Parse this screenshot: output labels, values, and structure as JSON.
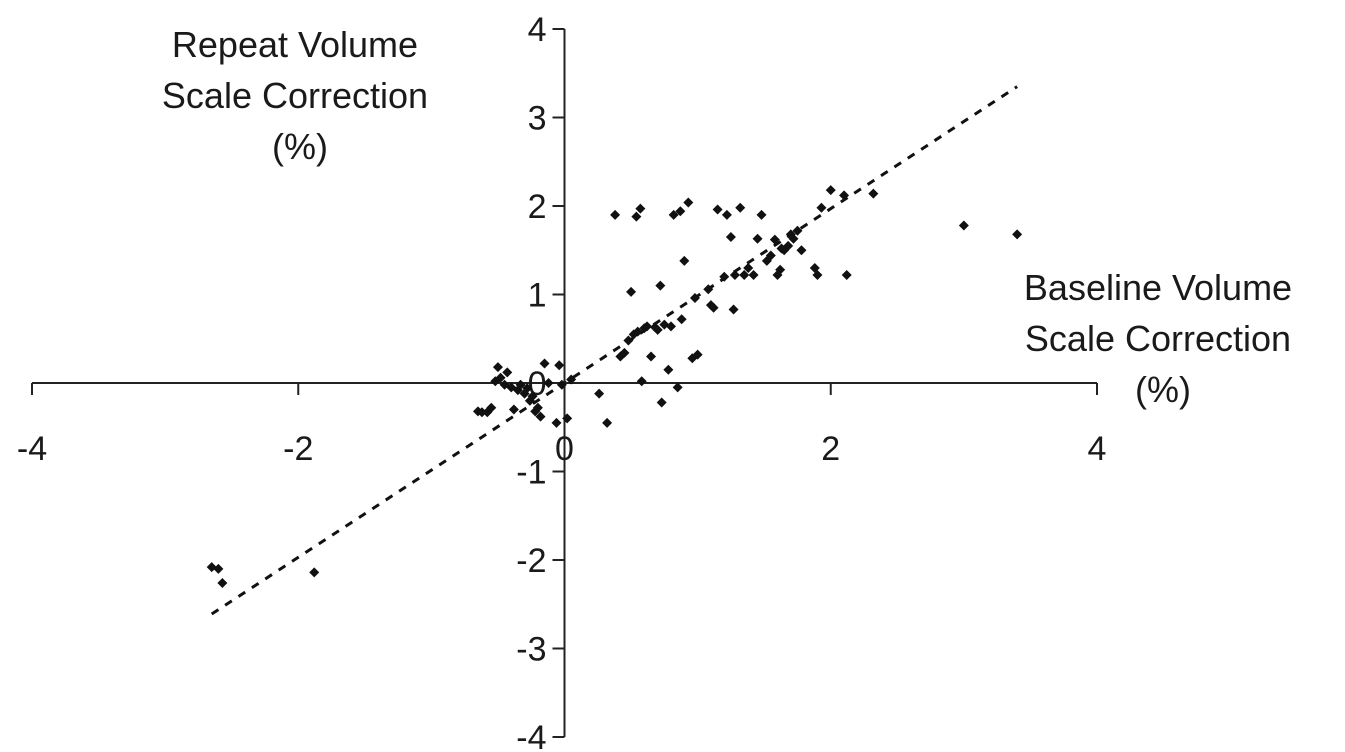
{
  "chart_data": {
    "type": "scatter",
    "title": "",
    "xlabel": [
      "Baseline Volume",
      "Scale Correction",
      "(%)"
    ],
    "ylabel": [
      "Repeat Volume",
      "Scale Correction",
      "(%)"
    ],
    "xlim": [
      -4,
      4
    ],
    "ylim": [
      -4,
      4
    ],
    "x_ticks": [
      -4,
      -2,
      0,
      2,
      4
    ],
    "y_ticks": [
      -4,
      -3,
      -2,
      -1,
      0,
      1,
      2,
      3,
      4
    ],
    "x_tick_labels": [
      "-4",
      "-2",
      "0",
      "2",
      "4"
    ],
    "y_tick_labels": [
      "-4",
      "-3",
      "-2",
      "-1",
      "0",
      "1",
      "2",
      "3",
      "4"
    ],
    "grid": false,
    "legend": "none",
    "marker_color": "#111111",
    "trendline": {
      "style": "dashed",
      "x_range": [
        -2.65,
        3.4
      ],
      "slope": 0.985,
      "intercept": 0.0
    },
    "series": [
      {
        "points": [
          [
            -2.65,
            -2.08
          ],
          [
            -2.6,
            -2.1
          ],
          [
            -2.57,
            -2.26
          ],
          [
            -1.88,
            -2.14
          ],
          [
            -0.65,
            -0.32
          ],
          [
            -0.62,
            -0.33
          ],
          [
            -0.58,
            -0.33
          ],
          [
            -0.55,
            -0.28
          ],
          [
            -0.52,
            0.02
          ],
          [
            -0.5,
            0.18
          ],
          [
            -0.48,
            0.06
          ],
          [
            -0.45,
            -0.02
          ],
          [
            -0.43,
            0.12
          ],
          [
            -0.4,
            -0.05
          ],
          [
            -0.38,
            -0.3
          ],
          [
            -0.35,
            -0.08
          ],
          [
            -0.33,
            -0.02
          ],
          [
            -0.3,
            -0.12
          ],
          [
            -0.28,
            -0.06
          ],
          [
            -0.26,
            -0.2
          ],
          [
            -0.24,
            -0.15
          ],
          [
            -0.22,
            -0.32
          ],
          [
            -0.2,
            -0.28
          ],
          [
            -0.18,
            -0.38
          ],
          [
            -0.15,
            0.22
          ],
          [
            -0.12,
            0.0
          ],
          [
            -0.06,
            -0.45
          ],
          [
            -0.04,
            0.2
          ],
          [
            -0.02,
            -0.02
          ],
          [
            0.02,
            -0.4
          ],
          [
            0.05,
            0.04
          ],
          [
            0.26,
            -0.12
          ],
          [
            0.32,
            -0.45
          ],
          [
            0.38,
            1.9
          ],
          [
            0.42,
            0.3
          ],
          [
            0.45,
            0.34
          ],
          [
            0.48,
            0.48
          ],
          [
            0.5,
            1.03
          ],
          [
            0.52,
            0.55
          ],
          [
            0.54,
            1.88
          ],
          [
            0.55,
            0.58
          ],
          [
            0.57,
            1.97
          ],
          [
            0.58,
            0.02
          ],
          [
            0.6,
            0.62
          ],
          [
            0.62,
            0.64
          ],
          [
            0.65,
            0.3
          ],
          [
            0.68,
            0.63
          ],
          [
            0.7,
            0.6
          ],
          [
            0.72,
            1.1
          ],
          [
            0.73,
            -0.22
          ],
          [
            0.75,
            0.66
          ],
          [
            0.78,
            0.15
          ],
          [
            0.8,
            0.64
          ],
          [
            0.82,
            1.9
          ],
          [
            0.85,
            -0.05
          ],
          [
            0.87,
            1.94
          ],
          [
            0.88,
            0.72
          ],
          [
            0.9,
            1.38
          ],
          [
            0.93,
            2.04
          ],
          [
            0.96,
            0.28
          ],
          [
            0.98,
            0.96
          ],
          [
            1.0,
            0.32
          ],
          [
            1.08,
            1.06
          ],
          [
            1.1,
            0.88
          ],
          [
            1.12,
            0.85
          ],
          [
            1.15,
            1.96
          ],
          [
            1.2,
            1.2
          ],
          [
            1.22,
            1.9
          ],
          [
            1.25,
            1.65
          ],
          [
            1.27,
            0.83
          ],
          [
            1.28,
            1.22
          ],
          [
            1.32,
            1.98
          ],
          [
            1.35,
            1.22
          ],
          [
            1.38,
            1.3
          ],
          [
            1.42,
            1.22
          ],
          [
            1.45,
            1.63
          ],
          [
            1.48,
            1.9
          ],
          [
            1.52,
            1.38
          ],
          [
            1.55,
            1.44
          ],
          [
            1.58,
            1.62
          ],
          [
            1.6,
            1.22
          ],
          [
            1.62,
            1.28
          ],
          [
            1.63,
            1.52
          ],
          [
            1.65,
            1.5
          ],
          [
            1.68,
            1.55
          ],
          [
            1.7,
            1.68
          ],
          [
            1.72,
            1.63
          ],
          [
            1.75,
            1.72
          ],
          [
            1.78,
            1.5
          ],
          [
            1.88,
            1.3
          ],
          [
            1.9,
            1.22
          ],
          [
            1.93,
            1.98
          ],
          [
            2.0,
            2.18
          ],
          [
            2.1,
            2.12
          ],
          [
            2.12,
            1.22
          ],
          [
            2.32,
            2.14
          ],
          [
            3.0,
            1.78
          ],
          [
            3.4,
            1.68
          ]
        ]
      }
    ]
  }
}
